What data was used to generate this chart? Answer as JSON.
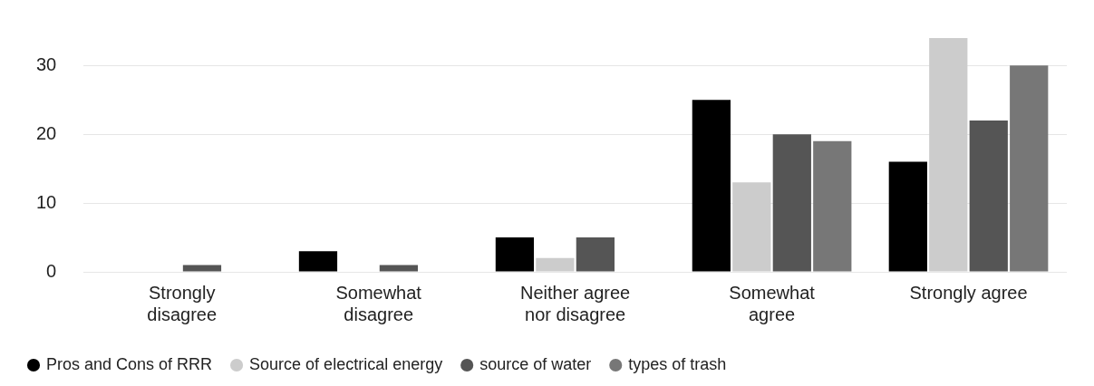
{
  "chart_data": {
    "type": "bar",
    "categories": [
      "Strongly disagree",
      "Somewhat disagree",
      "Neither agree nor disagree",
      "Somewhat agree",
      "Strongly agree"
    ],
    "series": [
      {
        "name": "Pros and Cons of RRR",
        "color": "#000000",
        "values": [
          0,
          3,
          5,
          25,
          16
        ]
      },
      {
        "name": "Source of electrical energy",
        "color": "#cccccc",
        "values": [
          0,
          0,
          2,
          13,
          34
        ]
      },
      {
        "name": "source of water",
        "color": "#555555",
        "values": [
          1,
          1,
          5,
          20,
          22
        ]
      },
      {
        "name": "types of trash",
        "color": "#777777",
        "values": [
          0,
          0,
          0,
          19,
          30
        ]
      }
    ],
    "ylim": [
      0,
      34
    ],
    "yticks": [
      0,
      10,
      20,
      30
    ],
    "grid": "y",
    "legend": "bottom left"
  }
}
